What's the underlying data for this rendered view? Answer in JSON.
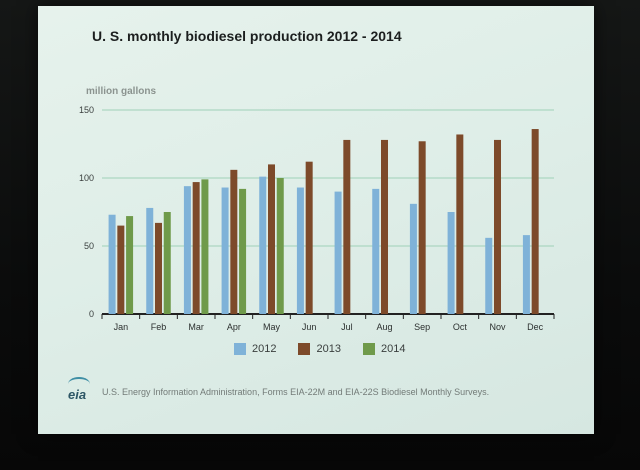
{
  "chart_data": {
    "type": "bar",
    "title": "U. S. monthly biodiesel production 2012 - 2014",
    "ylabel": "million gallons",
    "xlabel": "",
    "ylim": [
      0,
      150
    ],
    "yticks": [
      0,
      50,
      100,
      150
    ],
    "grid": true,
    "legend_position": "bottom",
    "categories": [
      "Jan",
      "Feb",
      "Mar",
      "Apr",
      "May",
      "Jun",
      "Jul",
      "Aug",
      "Sep",
      "Oct",
      "Nov",
      "Dec"
    ],
    "series": [
      {
        "name": "2012",
        "color": "#7fb2d8",
        "values": [
          73,
          78,
          94,
          93,
          101,
          93,
          90,
          92,
          81,
          75,
          56,
          58
        ]
      },
      {
        "name": "2013",
        "color": "#7d4a2a",
        "values": [
          65,
          67,
          97,
          106,
          110,
          112,
          128,
          128,
          127,
          132,
          128,
          136
        ]
      },
      {
        "name": "2014",
        "color": "#6f9a4a",
        "values": [
          72,
          75,
          99,
          92,
          100,
          null,
          null,
          null,
          null,
          null,
          null,
          null
        ]
      }
    ]
  },
  "source": {
    "logo_text": "eia",
    "text": "U.S. Energy Information Administration, Forms EIA-22M and EIA-22S Biodiesel Monthly Surveys."
  }
}
